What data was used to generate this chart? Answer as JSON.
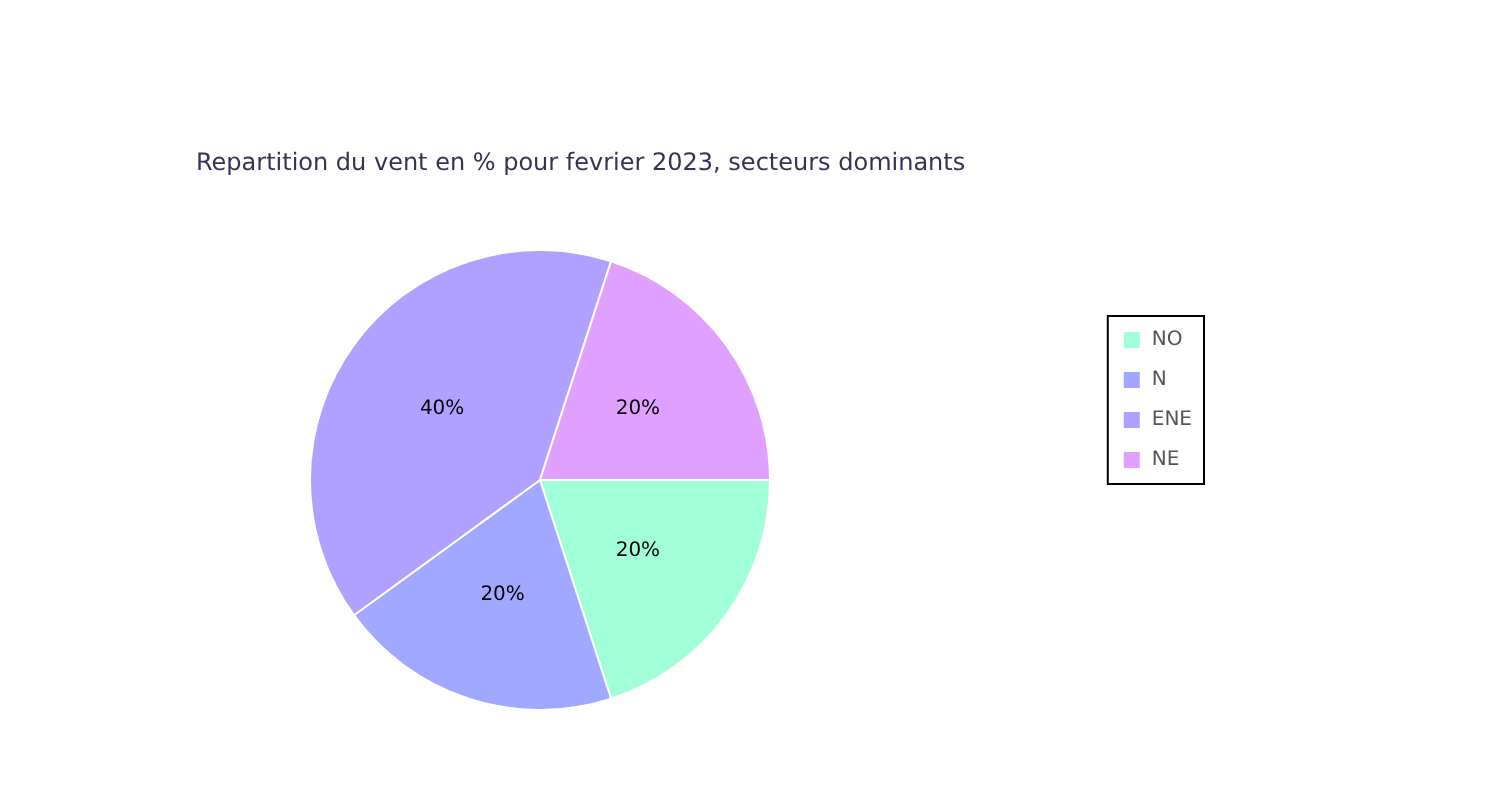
{
  "chart_data": {
    "type": "pie",
    "title": "Repartition du vent en % pour fevrier 2023, secteurs dominants",
    "categories": [
      "NO",
      "N",
      "ENE",
      "NE"
    ],
    "values": [
      20,
      20,
      40,
      20
    ],
    "value_labels": [
      "20%",
      "20%",
      "40%",
      "20%"
    ],
    "colors": [
      "#a0ffd8",
      "#a0a8ff",
      "#b0a0ff",
      "#e0a0ff"
    ],
    "legend": "right"
  }
}
